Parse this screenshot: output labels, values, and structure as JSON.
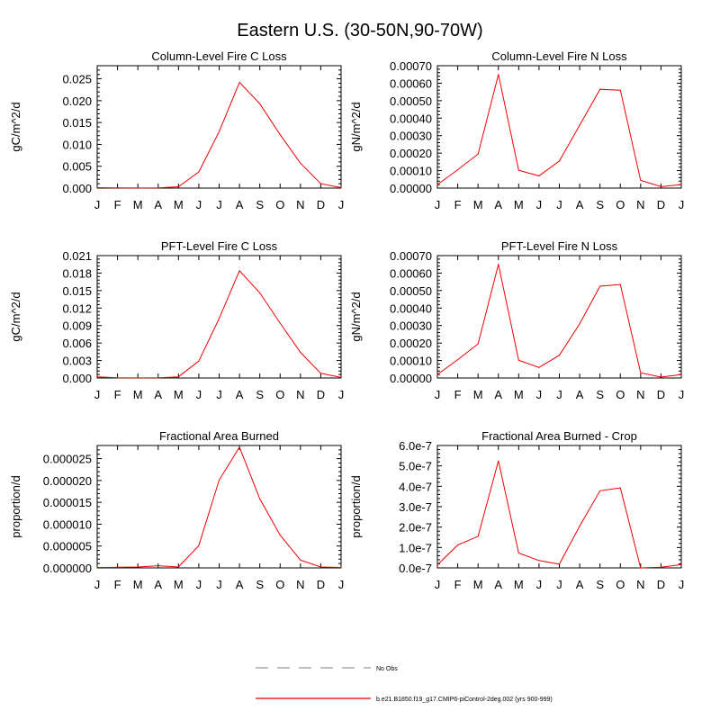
{
  "page": {
    "title": "Eastern U.S. (30-50N,90-70W)"
  },
  "legend": {
    "placement": "bottom-center",
    "entries": [
      {
        "label": "No Obs",
        "style": "dashed",
        "color": "#999999"
      },
      {
        "label": "b.e21.B1850.f19_g17.CMIP6-piControl-2deg.002 (yrs 900-999)",
        "style": "solid",
        "color": "#ee0000"
      }
    ]
  },
  "chart_data": [
    {
      "type": "line",
      "title": "Column-Level Fire C Loss",
      "ylabel": "gC/m^2/d",
      "categories": [
        "J",
        "F",
        "M",
        "A",
        "M",
        "J",
        "J",
        "A",
        "S",
        "O",
        "N",
        "D",
        "J"
      ],
      "ylim": [
        0,
        0.028
      ],
      "yticks": [
        0,
        0.005,
        0.01,
        0.015,
        0.02,
        0.025
      ],
      "ytick_labels": [
        "0.000",
        "0.005",
        "0.010",
        "0.015",
        "0.020",
        "0.025"
      ],
      "series": [
        {
          "color": "#ee0000",
          "values": [
            0.0001,
            5e-05,
            2e-05,
            5e-05,
            0.0003,
            0.0037,
            0.0129,
            0.0242,
            0.0193,
            0.0122,
            0.0057,
            0.001,
            0.0001
          ]
        }
      ]
    },
    {
      "type": "line",
      "title": "Column-Level Fire N Loss",
      "ylabel": "gN/m^2/d",
      "categories": [
        "J",
        "F",
        "M",
        "A",
        "M",
        "J",
        "J",
        "A",
        "S",
        "O",
        "N",
        "D",
        "J"
      ],
      "ylim": [
        0,
        0.0007
      ],
      "yticks": [
        0,
        0.0001,
        0.0002,
        0.0003,
        0.0004,
        0.0005,
        0.0006,
        0.0007
      ],
      "ytick_labels": [
        "0.00000",
        "0.00010",
        "0.00020",
        "0.00030",
        "0.00040",
        "0.00050",
        "0.00060",
        "0.00070"
      ],
      "series": [
        {
          "color": "#ee0000",
          "values": [
            2e-05,
            0.000105,
            0.000195,
            0.00065,
            0.000102,
            7e-05,
            0.000155,
            0.00036,
            0.000565,
            0.00056,
            4.5e-05,
            8e-06,
            2e-05
          ]
        }
      ]
    },
    {
      "type": "line",
      "title": "PFT-Level Fire C Loss",
      "ylabel": "gC/m^2/d",
      "categories": [
        "J",
        "F",
        "M",
        "A",
        "M",
        "J",
        "J",
        "A",
        "S",
        "O",
        "N",
        "D",
        "J"
      ],
      "ylim": [
        0,
        0.021
      ],
      "yticks": [
        0,
        0.003,
        0.006,
        0.009,
        0.012,
        0.015,
        0.018,
        0.021
      ],
      "ytick_labels": [
        "0.000",
        "0.003",
        "0.006",
        "0.009",
        "0.012",
        "0.015",
        "0.018",
        "0.021"
      ],
      "series": [
        {
          "color": "#ee0000",
          "values": [
            0.0002,
            5e-05,
            2e-05,
            3e-05,
            0.0002,
            0.0029,
            0.0102,
            0.0184,
            0.0146,
            0.0094,
            0.0044,
            0.0008,
            0.0001
          ]
        }
      ]
    },
    {
      "type": "line",
      "title": "PFT-Level Fire N Loss",
      "ylabel": "gN/m^2/d",
      "categories": [
        "J",
        "F",
        "M",
        "A",
        "M",
        "J",
        "J",
        "A",
        "S",
        "O",
        "N",
        "D",
        "J"
      ],
      "ylim": [
        0,
        0.0007
      ],
      "yticks": [
        0,
        0.0001,
        0.0002,
        0.0003,
        0.0004,
        0.0005,
        0.0006,
        0.0007
      ],
      "ytick_labels": [
        "0.00000",
        "0.00010",
        "0.00020",
        "0.00030",
        "0.00040",
        "0.00050",
        "0.00060",
        "0.00070"
      ],
      "series": [
        {
          "color": "#ee0000",
          "values": [
            2e-05,
            0.000105,
            0.000195,
            0.00065,
            0.000102,
            6e-05,
            0.00013,
            0.00031,
            0.000525,
            0.000535,
            3e-05,
            5e-06,
            2e-05
          ]
        }
      ]
    },
    {
      "type": "line",
      "title": "Fractional Area Burned",
      "ylabel": "proportion/d",
      "categories": [
        "J",
        "F",
        "M",
        "A",
        "M",
        "J",
        "J",
        "A",
        "S",
        "O",
        "N",
        "D",
        "J"
      ],
      "ylim": [
        0,
        2.8e-05
      ],
      "yticks": [
        0,
        5e-06,
        1e-05,
        1.5e-05,
        2e-05,
        2.5e-05
      ],
      "ytick_labels": [
        "0.000000",
        "0.000005",
        "0.000010",
        "0.000015",
        "0.000020",
        "0.000025"
      ],
      "series": [
        {
          "color": "#ee0000",
          "values": [
            1e-07,
            1.5e-07,
            2e-07,
            5e-07,
            2e-07,
            5.1e-06,
            2.01e-05,
            2.76e-05,
            1.58e-05,
            7.5e-06,
            1.8e-06,
            2e-07,
            1e-07
          ]
        }
      ]
    },
    {
      "type": "line",
      "title": "Fractional Area Burned - Crop",
      "ylabel": "proportion/d",
      "categories": [
        "J",
        "F",
        "M",
        "A",
        "M",
        "J",
        "J",
        "A",
        "S",
        "O",
        "N",
        "D",
        "J"
      ],
      "ylim": [
        0,
        6e-07
      ],
      "yticks": [
        0,
        1e-07,
        2e-07,
        3e-07,
        4e-07,
        5e-07,
        6e-07
      ],
      "ytick_labels": [
        "0.0e-7",
        "1.0e-7",
        "2.0e-7",
        "3.0e-7",
        "4.0e-7",
        "5.0e-7",
        "6.0e-7"
      ],
      "series": [
        {
          "color": "#ee0000",
          "values": [
            1.5e-08,
            1.12e-07,
            1.55e-07,
            5.25e-07,
            7.3e-08,
            3.6e-08,
            1.8e-08,
            2.05e-07,
            3.78e-07,
            3.92e-07,
            0.0,
            3e-09,
            1.6e-08
          ]
        }
      ]
    }
  ]
}
